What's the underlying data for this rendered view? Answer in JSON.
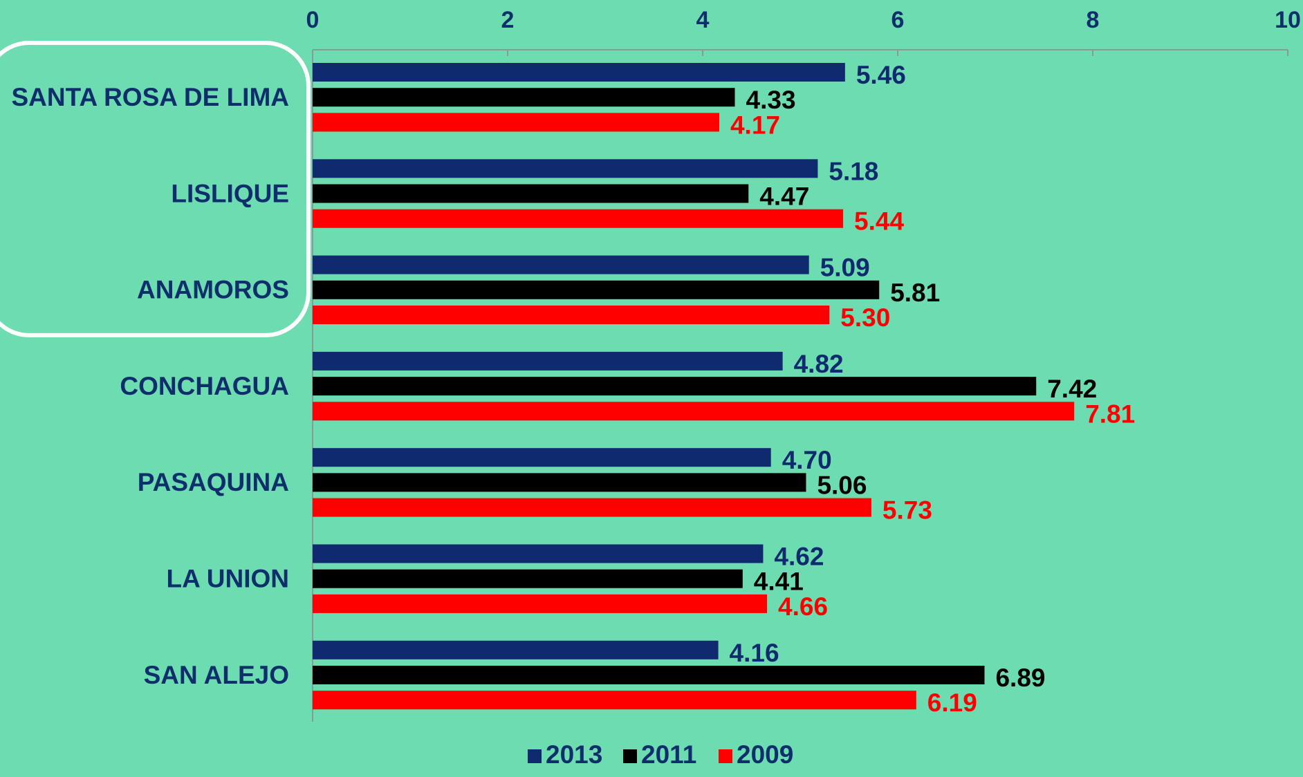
{
  "chart_data": {
    "type": "bar",
    "orientation": "horizontal",
    "categories": [
      "SANTA ROSA DE LIMA",
      "LISLIQUE",
      "ANAMOROS",
      "CONCHAGUA",
      "PASAQUINA",
      "LA UNION",
      "SAN ALEJO"
    ],
    "series": [
      {
        "name": "2013",
        "color": "#0f2a6e",
        "values": [
          5.46,
          5.18,
          5.09,
          4.82,
          4.7,
          4.62,
          4.16
        ],
        "labels": [
          "5.46",
          "5.18",
          "5.09",
          "4.82",
          "4.70",
          "4.62",
          "4.16"
        ]
      },
      {
        "name": "2011",
        "color": "#000000",
        "values": [
          4.33,
          4.47,
          5.81,
          7.42,
          5.06,
          4.41,
          6.89
        ],
        "labels": [
          "4.33",
          "4.47",
          "5.81",
          "7.42",
          "5.06",
          "4.41",
          "6.89"
        ]
      },
      {
        "name": "2009",
        "color": "#ff0000",
        "values": [
          4.17,
          5.44,
          5.3,
          7.81,
          5.73,
          4.66,
          6.19
        ],
        "labels": [
          "4.17",
          "5.44",
          "5.30",
          "7.81",
          "5.73",
          "4.66",
          "6.19"
        ]
      }
    ],
    "xlim": [
      0,
      10
    ],
    "xticks": [
      "0",
      "2",
      "4",
      "6",
      "8",
      "10"
    ],
    "x_axis_position": "top",
    "grid": false,
    "legend_position": "bottom-center",
    "highlighted_categories": [
      "SANTA ROSA DE LIMA",
      "LISLIQUE",
      "ANAMOROS"
    ],
    "highlight_color": "#ffffff",
    "label_color": "#0e2f6b",
    "background_color": "#6ddcb0"
  }
}
